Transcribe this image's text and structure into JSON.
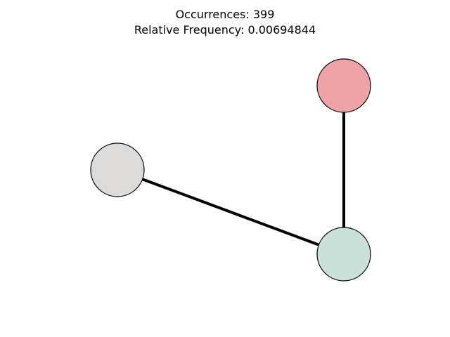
{
  "title": {
    "line1": "Occurrences: 399",
    "line2": "Relative Frequency: 0.00694844"
  },
  "graph": {
    "nodes": [
      {
        "id": "node-top-right",
        "color": "#eea3a6"
      },
      {
        "id": "node-left",
        "color": "#dcdbd9"
      },
      {
        "id": "node-bottom-right",
        "color": "#c9e1d9"
      }
    ],
    "edges": [
      {
        "from": "node-top-right",
        "to": "node-bottom-right"
      },
      {
        "from": "node-left",
        "to": "node-bottom-right"
      }
    ],
    "edge_color": "#000000",
    "node_outline_color": "#000000"
  }
}
